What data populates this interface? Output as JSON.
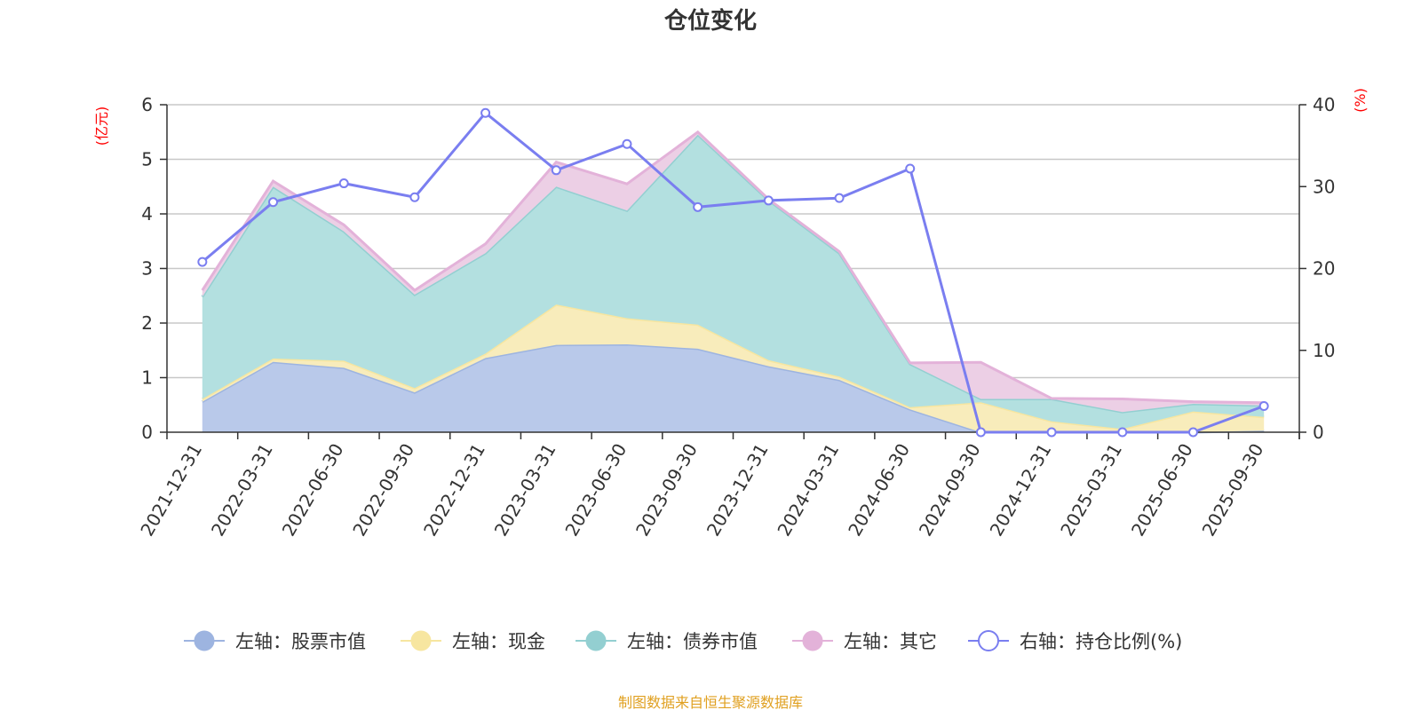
{
  "chart_data": {
    "type": "area",
    "title": "仓位变化",
    "source": "制图数据来自恒生聚源数据库",
    "left_axis": {
      "unit": "(亿元)",
      "ylim": [
        0,
        6
      ],
      "ticks": [
        "0",
        "1",
        "2",
        "3",
        "4",
        "5",
        "6"
      ]
    },
    "right_axis": {
      "unit": "(%)",
      "ylim": [
        0,
        40
      ],
      "ticks": [
        "0",
        "10",
        "20",
        "30",
        "40"
      ]
    },
    "categories": [
      "2021-12-31",
      "2022-03-31",
      "2022-06-30",
      "2022-09-30",
      "2022-12-31",
      "2023-03-31",
      "2023-06-30",
      "2023-09-30",
      "2023-12-31",
      "2024-03-31",
      "2024-06-30",
      "2024-09-30",
      "2024-12-31",
      "2025-03-31",
      "2025-06-30",
      "2025-09-30"
    ],
    "stacked_series": [
      {
        "name": "左轴：股票市值",
        "color": "#9db4e0",
        "fill": "#b9c9ea",
        "values": [
          0.56,
          1.29,
          1.18,
          0.73,
          1.36,
          1.6,
          1.61,
          1.53,
          1.21,
          0.96,
          0.42,
          0.0,
          0.0,
          0.0,
          0.0,
          0.03
        ]
      },
      {
        "name": "左轴：现金",
        "color": "#f7e6a0",
        "fill": "#f8ecbb",
        "values": [
          0.05,
          0.06,
          0.13,
          0.08,
          0.08,
          0.74,
          0.48,
          0.44,
          0.11,
          0.06,
          0.04,
          0.55,
          0.2,
          0.06,
          0.38,
          0.25
        ]
      },
      {
        "name": "左轴：债券市值",
        "color": "#93cfd1",
        "fill": "#b3e0e0",
        "values": [
          1.87,
          3.15,
          2.37,
          1.71,
          1.84,
          2.16,
          1.97,
          3.48,
          2.93,
          2.26,
          0.79,
          0.06,
          0.41,
          0.31,
          0.14,
          0.21
        ]
      },
      {
        "name": "左轴：其它",
        "color": "#e3b2d9",
        "fill": "#eccfe5",
        "values": [
          0.12,
          0.1,
          0.12,
          0.08,
          0.17,
          0.45,
          0.49,
          0.05,
          0.02,
          0.03,
          0.02,
          0.67,
          0.01,
          0.24,
          0.04,
          0.05
        ]
      }
    ],
    "line_series": {
      "name": "右轴：持仓比例(%)",
      "color": "#7a7ef0",
      "values": [
        20.8,
        28.1,
        30.4,
        28.7,
        39.0,
        32.0,
        35.2,
        27.5,
        28.3,
        28.6,
        32.2,
        0.0,
        0.0,
        0.0,
        0.0,
        3.2
      ]
    }
  },
  "colors": {
    "title": "#333333",
    "unit": "#ff0000",
    "source": "#e0a020",
    "grid": "#c8c8c8",
    "axis": "#333333"
  }
}
